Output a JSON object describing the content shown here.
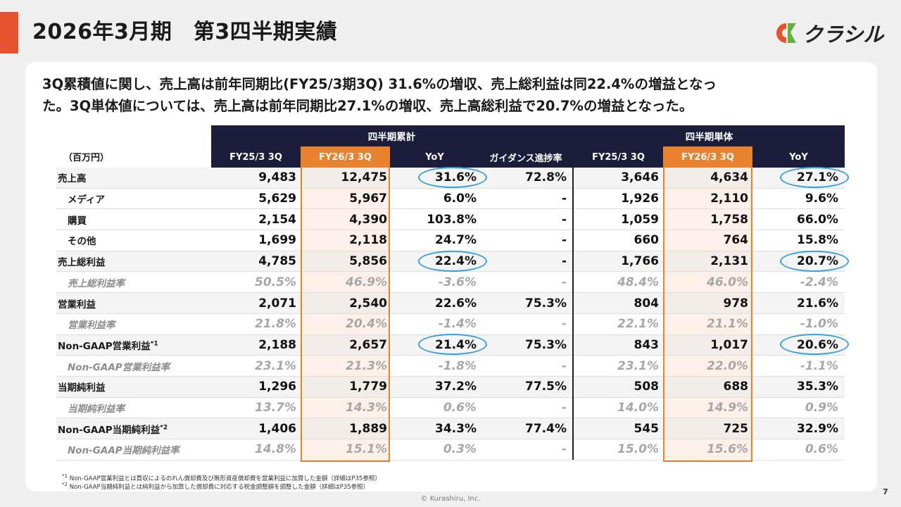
{
  "title": "2026年3月期　第3四半期実績",
  "logo_text": "クラシル",
  "summary_line1": "3Q累積値に関し、売上高は前年同期比(FY25/3期3Q) 31.6%の増収、売上総利益は同22.4%の増益となっ",
  "summary_line2": "た。3Q単体値については、売上高は前年同期比27.1%の増収、売上高総利益で20.7%の増益となった。",
  "table": {
    "unit_label": "（百万円）",
    "group_cumulative": "四半期累計",
    "group_single": "四半期単体",
    "columns": [
      "FY25/3 3Q",
      "FY26/3 3Q",
      "YoY",
      "ガイダンス進捗率",
      "FY25/3 3Q",
      "FY26/3 3Q",
      "YoY"
    ],
    "rows": [
      {
        "label": "売上高",
        "values": [
          "9,483",
          "12,475",
          "31.6%",
          "72.8%",
          "3,646",
          "4,634",
          "27.1%"
        ]
      },
      {
        "label": "メディア",
        "values": [
          "5,629",
          "5,967",
          "6.0%",
          "-",
          "1,926",
          "2,110",
          "9.6%"
        ]
      },
      {
        "label": "購買",
        "values": [
          "2,154",
          "4,390",
          "103.8%",
          "-",
          "1,059",
          "1,758",
          "66.0%"
        ]
      },
      {
        "label": "その他",
        "values": [
          "1,699",
          "2,118",
          "24.7%",
          "-",
          "660",
          "764",
          "15.8%"
        ]
      },
      {
        "label": "売上総利益",
        "values": [
          "4,785",
          "5,856",
          "22.4%",
          "-",
          "1,766",
          "2,131",
          "20.7%"
        ]
      },
      {
        "label": "売上総利益率",
        "values": [
          "50.5%",
          "46.9%",
          "-3.6%",
          "-",
          "48.4%",
          "46.0%",
          "-2.4%"
        ]
      },
      {
        "label": "営業利益",
        "values": [
          "2,071",
          "2,540",
          "22.6%",
          "75.3%",
          "804",
          "978",
          "21.6%"
        ]
      },
      {
        "label": "営業利益率",
        "values": [
          "21.8%",
          "20.4%",
          "-1.4%",
          "-",
          "22.1%",
          "21.1%",
          "-1.0%"
        ]
      },
      {
        "label": "Non-GAAP営業利益",
        "note": "*1",
        "values": [
          "2,188",
          "2,657",
          "21.4%",
          "75.3%",
          "843",
          "1,017",
          "20.6%"
        ]
      },
      {
        "label": "Non-GAAP営業利益率",
        "values": [
          "23.1%",
          "21.3%",
          "-1.8%",
          "-",
          "23.1%",
          "22.0%",
          "-1.1%"
        ]
      },
      {
        "label": "当期純利益",
        "values": [
          "1,296",
          "1,779",
          "37.2%",
          "77.5%",
          "508",
          "688",
          "35.3%"
        ]
      },
      {
        "label": "当期純利益率",
        "values": [
          "13.7%",
          "14.3%",
          "0.6%",
          "-",
          "14.0%",
          "14.9%",
          "0.9%"
        ]
      },
      {
        "label": "Non-GAAP当期純利益",
        "note": "*2",
        "values": [
          "1,406",
          "1,889",
          "34.3%",
          "77.4%",
          "545",
          "725",
          "32.9%"
        ]
      },
      {
        "label": "Non-GAAP当期純利益率",
        "values": [
          "14.8%",
          "15.1%",
          "0.3%",
          "-",
          "15.0%",
          "15.6%",
          "0.6%"
        ]
      }
    ]
  },
  "footnotes": [
    {
      "mark": "*1",
      "text": " Non-GAAP営業利益とは買収によるのれん償却費及び無形資産償却費を営業利益に加算した金額（詳細はP35参照）"
    },
    {
      "mark": "*2",
      "text": " Non-GAAP当期純利益とは純利益から加算した償却費に対応する税金調整額を調整した金額（詳細はP35参照）"
    }
  ],
  "copyright": "© Kurashiru, Inc.",
  "page_number": "7",
  "colors": {
    "accent": "#e8532f",
    "header": "#1b1d3a",
    "highlight": "#e8822f",
    "circle": "#3aa0dd"
  }
}
